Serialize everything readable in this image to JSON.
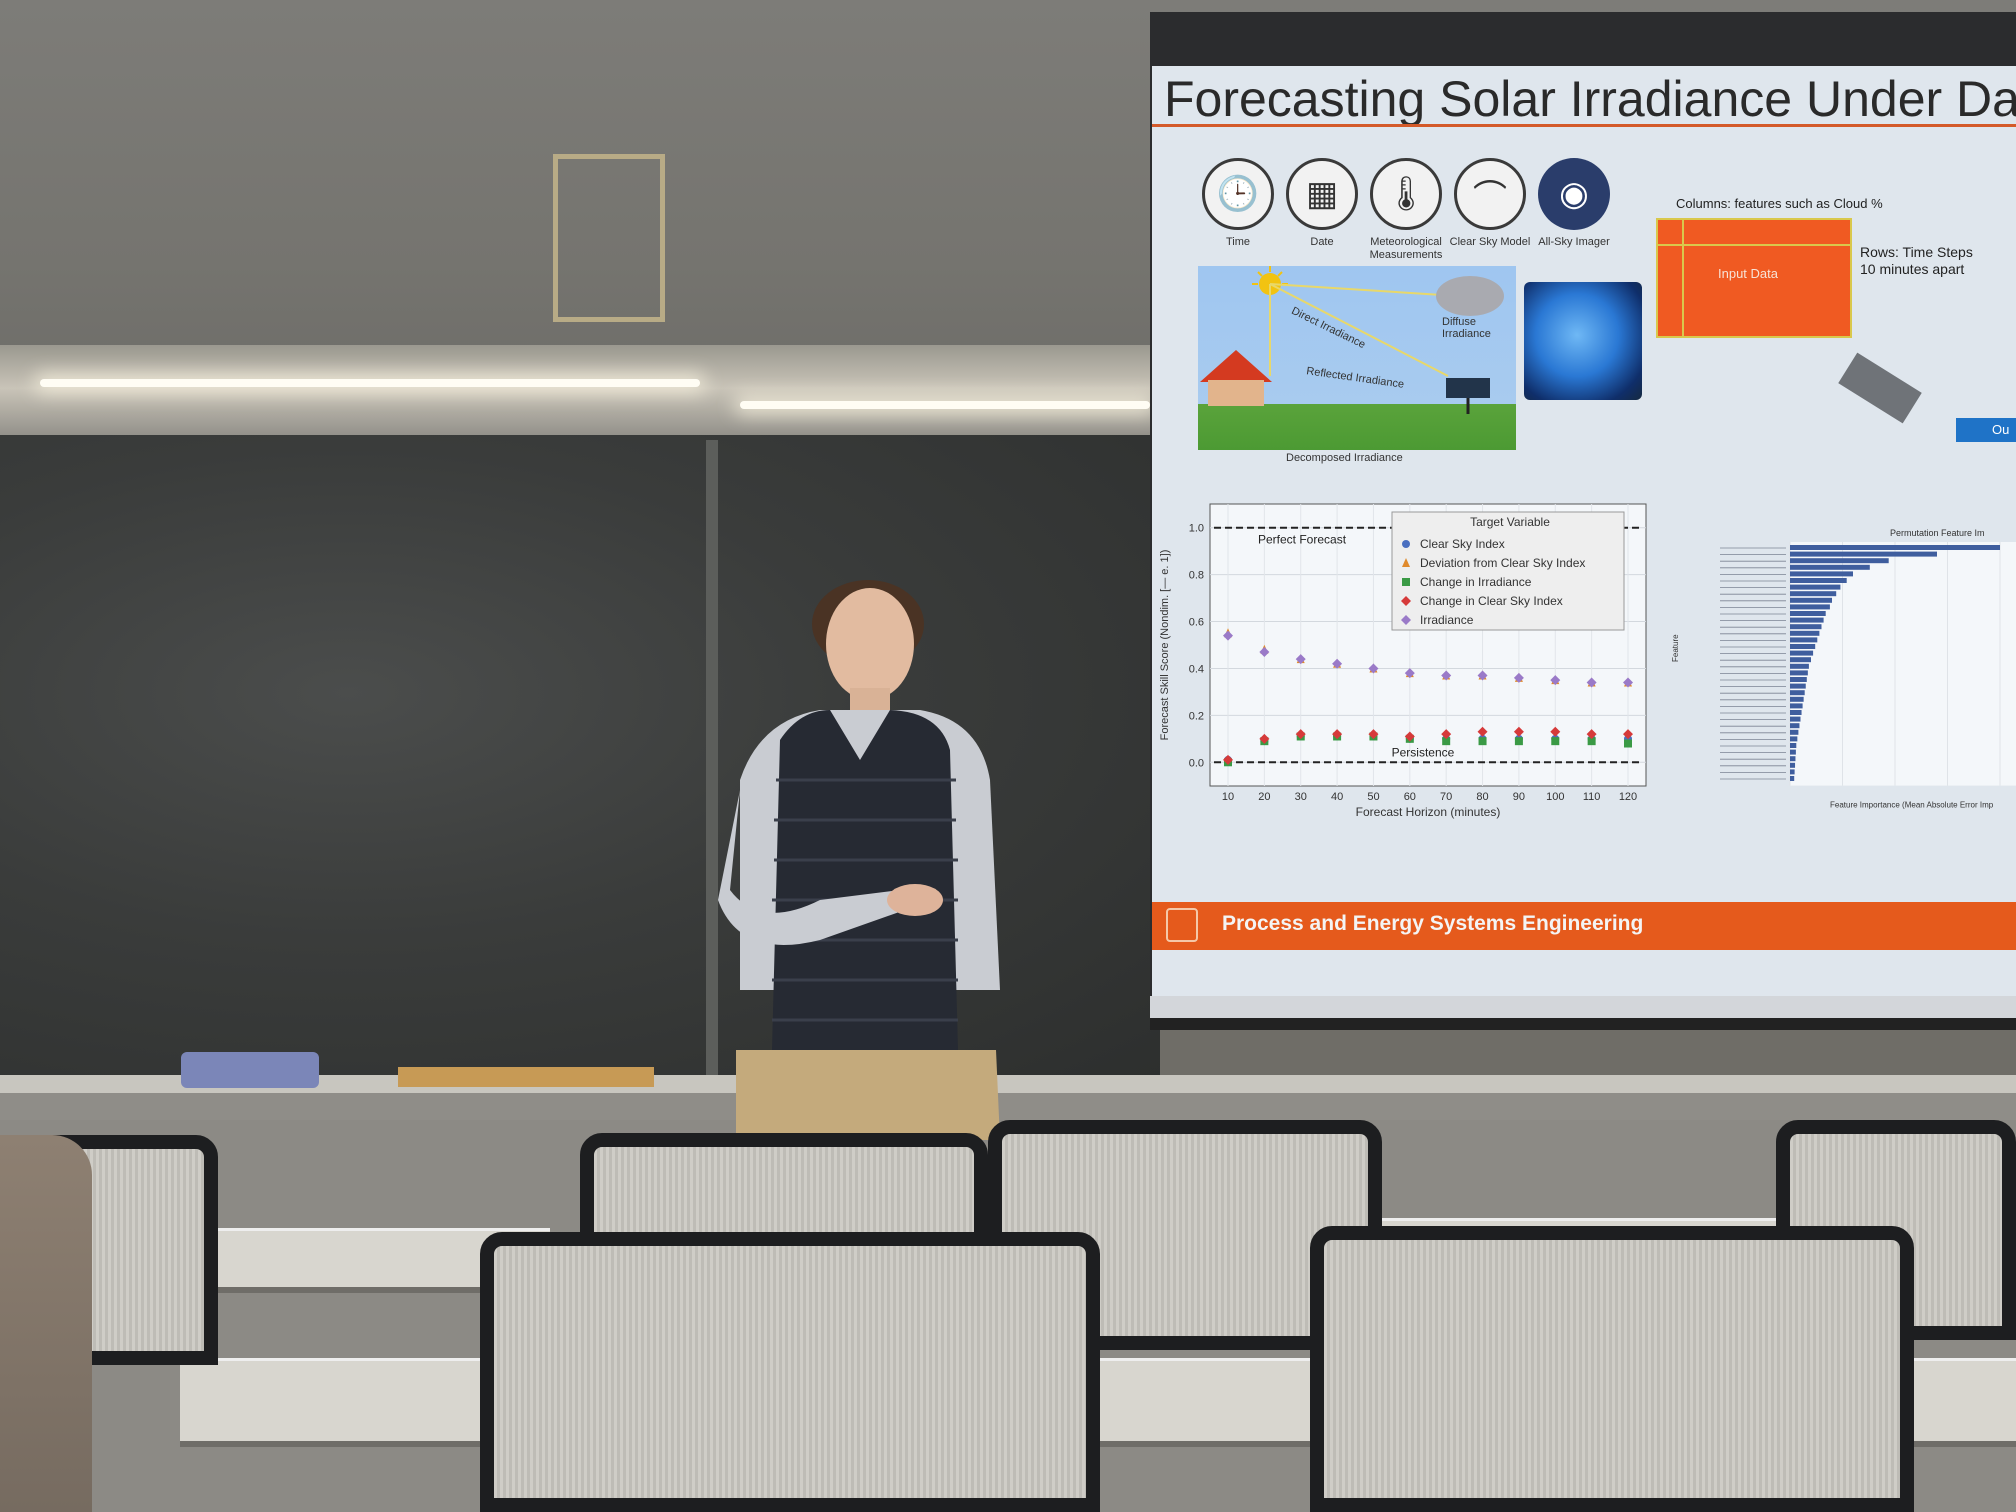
{
  "slide": {
    "title": "Forecasting Solar Irradiance Under Data Tr",
    "icons": [
      {
        "label": "Time",
        "icon": "clock-icon",
        "glyph": "🕒"
      },
      {
        "label": "Date",
        "icon": "calendar-icon",
        "glyph": "▦"
      },
      {
        "label": "Meteorological Measurements",
        "icon": "thermometer-icon",
        "glyph": "🌡"
      },
      {
        "label": "Clear Sky Model",
        "icon": "bell-curve-icon",
        "glyph": "⌒"
      },
      {
        "label": "All-Sky Imager",
        "icon": "sky-imager-icon",
        "glyph": "◉"
      }
    ],
    "irradiance_labels": {
      "direct": "Direct Irradiance",
      "diffuse": "Diffuse Irradiance",
      "reflected": "Reflected Irradiance",
      "caption": "Decomposed Irradiance"
    },
    "input_data": {
      "columns_note": "Columns: features such as Cloud %",
      "rows_note_1": "Rows: Time Steps",
      "rows_note_2": "10 minutes apart",
      "box_label": "Input Data",
      "output_label": "Ou"
    },
    "footer": "Process and Energy Systems Engineering",
    "sun_color": "#f2c311",
    "accent": "#e55a1c"
  },
  "chart_data": [
    {
      "type": "scatter",
      "xlabel": "Forecast Horizon (minutes)",
      "ylabel": "Forecast Skill Score (Nondim. [— e. 1])",
      "x": [
        10,
        20,
        30,
        40,
        50,
        60,
        70,
        80,
        90,
        100,
        110,
        120
      ],
      "ylim": [
        -0.05,
        1.05
      ],
      "yticks": [
        "0.0",
        "0.2",
        "0.4",
        "0.6",
        "0.8",
        "1.0"
      ],
      "legend_title": "Target Variable",
      "legend_placement": "top-right",
      "annotations": [
        "Perfect Forecast",
        "Persistence"
      ],
      "reference_lines": [
        1.0,
        0.0
      ],
      "grid": true,
      "series": [
        {
          "name": "Clear Sky Index",
          "marker": "circle",
          "color": "#4a6fc0",
          "values": [
            0.01,
            0.09,
            0.11,
            0.11,
            0.11,
            0.1,
            0.1,
            0.1,
            0.1,
            0.1,
            0.1,
            0.1
          ]
        },
        {
          "name": "Deviation from Clear Sky Index",
          "marker": "triangle",
          "color": "#e08a2c",
          "values": [
            0.55,
            0.48,
            0.44,
            0.42,
            0.4,
            0.38,
            0.37,
            0.37,
            0.36,
            0.35,
            0.34,
            0.34
          ]
        },
        {
          "name": "Change in Irradiance",
          "marker": "square",
          "color": "#3a9a45",
          "values": [
            0.0,
            0.09,
            0.11,
            0.11,
            0.11,
            0.1,
            0.09,
            0.09,
            0.09,
            0.09,
            0.09,
            0.08
          ]
        },
        {
          "name": "Change in Clear Sky Index",
          "marker": "diamond",
          "color": "#d63a3a",
          "values": [
            0.01,
            0.1,
            0.12,
            0.12,
            0.12,
            0.11,
            0.12,
            0.13,
            0.13,
            0.13,
            0.12,
            0.12
          ]
        },
        {
          "name": "Irradiance",
          "marker": "diamond",
          "color": "#9a7ac8",
          "values": [
            0.54,
            0.47,
            0.44,
            0.42,
            0.4,
            0.38,
            0.37,
            0.37,
            0.36,
            0.35,
            0.34,
            0.34
          ]
        }
      ]
    },
    {
      "type": "bar",
      "title": "Permutation Feature Im",
      "xlabel": "Feature Importance (Mean Absolute Error Imp",
      "ylabel": "Feature",
      "values": [
        1.0,
        0.7,
        0.47,
        0.38,
        0.3,
        0.27,
        0.24,
        0.22,
        0.2,
        0.19,
        0.17,
        0.16,
        0.15,
        0.14,
        0.13,
        0.12,
        0.11,
        0.1,
        0.09,
        0.085,
        0.08,
        0.075,
        0.07,
        0.065,
        0.06,
        0.055,
        0.05,
        0.045,
        0.04,
        0.035,
        0.03,
        0.028,
        0.026,
        0.024,
        0.022,
        0.02
      ]
    }
  ]
}
